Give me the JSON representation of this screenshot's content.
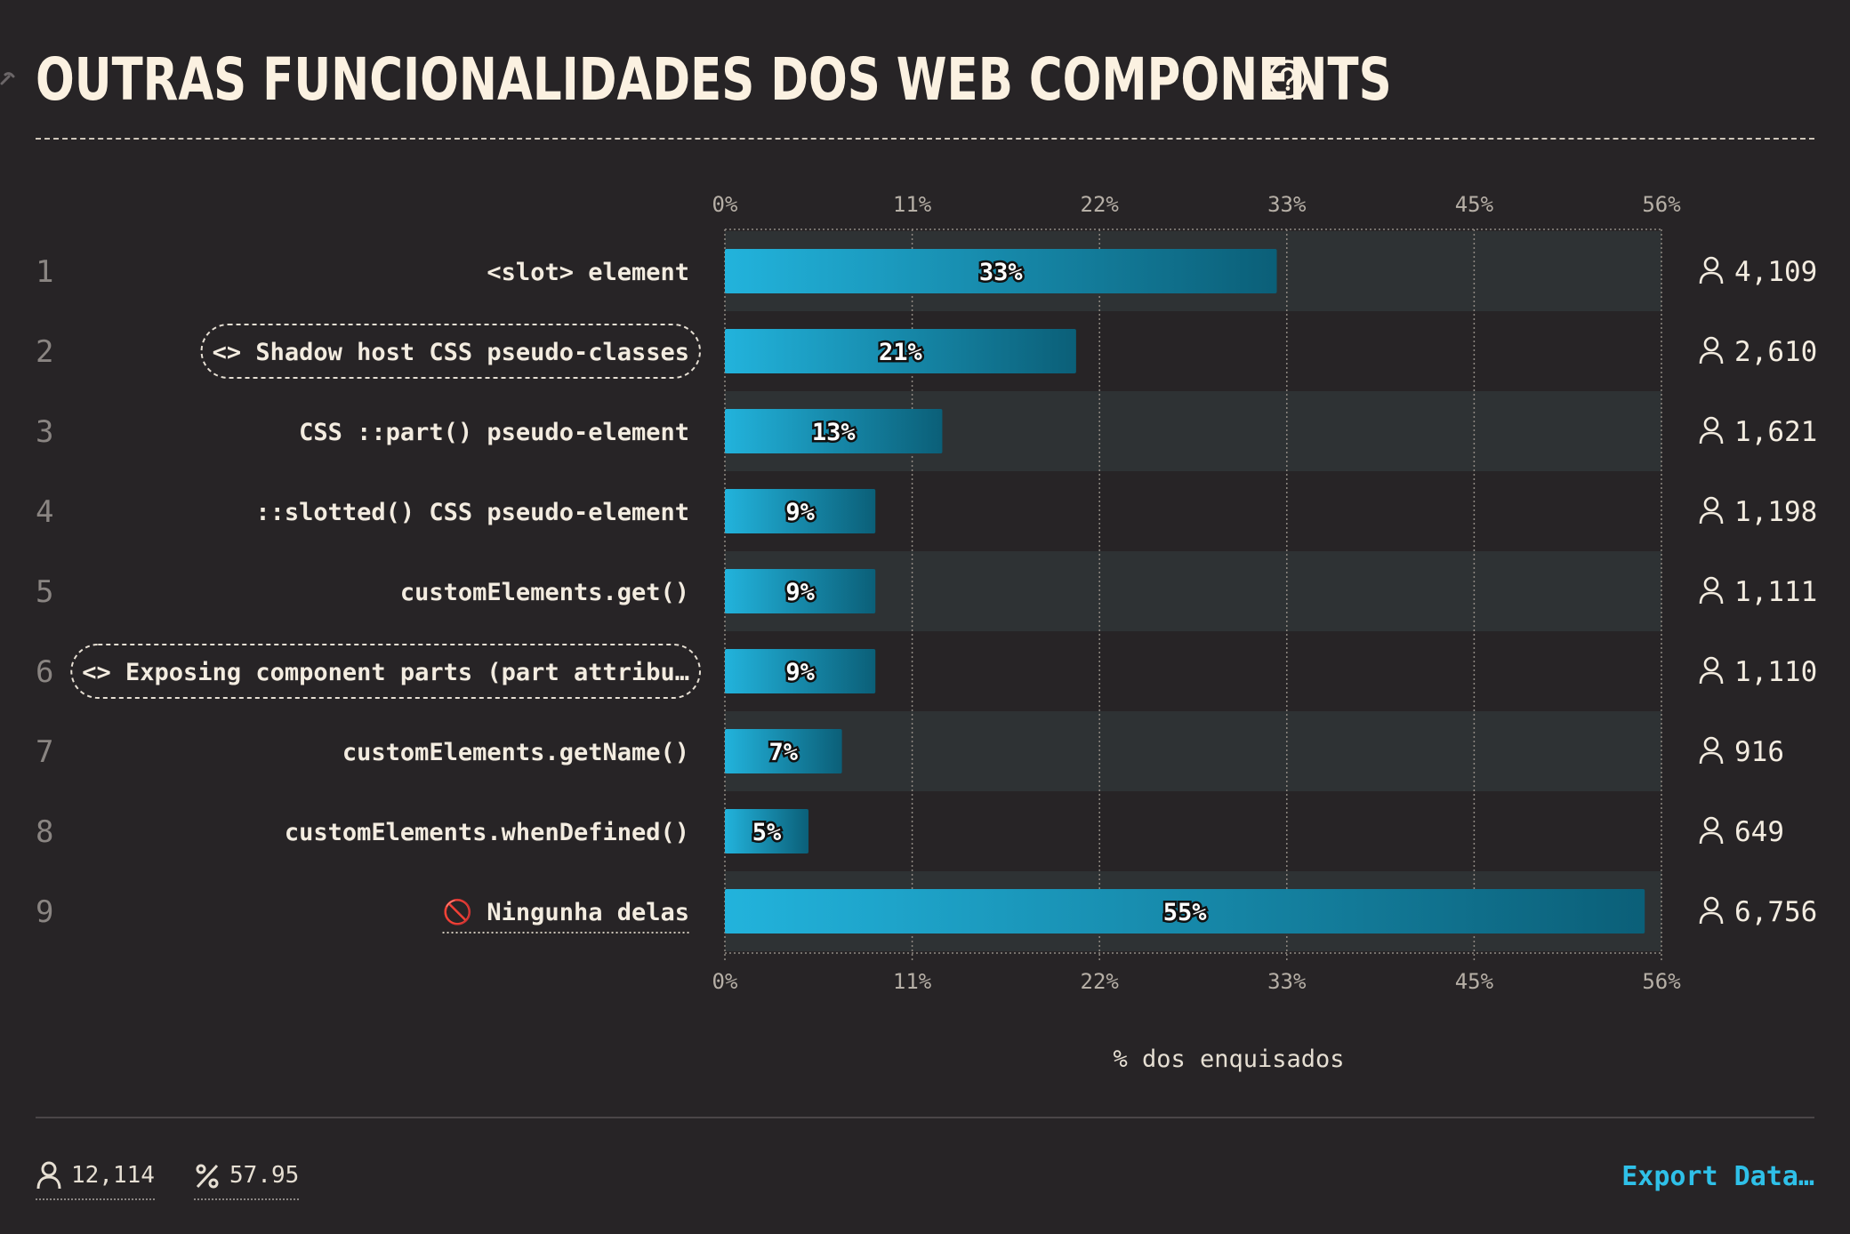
{
  "header": {
    "title": "OUTRAS FUNCIONALIDADES DOS WEB COMPONENTS",
    "help_icon": "question-circle-icon",
    "link_icon": "link-icon"
  },
  "chart_data": {
    "type": "bar",
    "orientation": "horizontal",
    "xlabel": "% dos enquisados",
    "xlim": [
      0,
      56
    ],
    "ticks": [
      "0%",
      "11%",
      "22%",
      "33%",
      "45%",
      "56%"
    ],
    "grid": true,
    "bar_color_start": "#22b3dc",
    "bar_color_end": "#0b5f78",
    "categories": [
      "<slot> element",
      "Shadow host CSS pseudo-classes",
      "CSS ::part() pseudo-element",
      "::slotted() CSS pseudo-element",
      "customElements.get()",
      "Exposing component parts (part attribu…",
      "customElements.getName()",
      "customElements.whenDefined()",
      "Ningunha delas"
    ],
    "code_tag_rows": [
      2,
      6
    ],
    "none_row": 9,
    "values": [
      33,
      21,
      13,
      9,
      9,
      9,
      7,
      5,
      55
    ],
    "value_labels": [
      "33%",
      "21%",
      "13%",
      "9%",
      "9%",
      "9%",
      "7%",
      "5%",
      "55%"
    ],
    "counts": [
      "4,109",
      "2,610",
      "1,621",
      "1,198",
      "1,111",
      "1,110",
      "916",
      "649",
      "6,756"
    ],
    "ranks": [
      "1",
      "2",
      "3",
      "4",
      "5",
      "6",
      "7",
      "8",
      "9"
    ]
  },
  "footer": {
    "respondents": "12,114",
    "percentage": "57.95",
    "export_label": "Export Data…"
  }
}
